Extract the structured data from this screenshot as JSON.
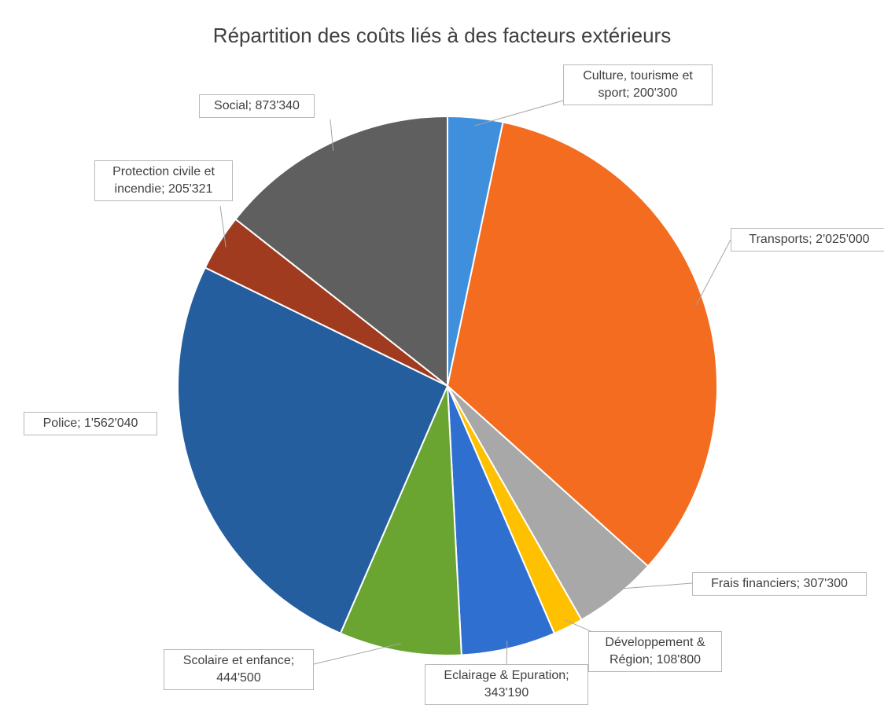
{
  "chart_data": {
    "type": "pie",
    "title": "Répartition des coûts liés à des facteurs extérieurs",
    "values": [
      200300,
      2025000,
      307300,
      108800,
      343190,
      444500,
      1562040,
      205321,
      873340
    ],
    "value_labels": [
      "Culture, tourisme et sport; 200'300",
      "Transports; 2'025'000",
      "Frais financiers; 307'300",
      "Développement & Région; 108'800",
      "Eclairage & Epuration; 343'190",
      "Scolaire et enfance; 444'500",
      "Police; 1'562'040",
      "Protection civile et incendie; 205'321",
      "Social; 873'340"
    ],
    "colors": [
      "#3f8fdc",
      "#f36c1f",
      "#a8a8a8",
      "#ffc000",
      "#2f6fcf",
      "#6aa431",
      "#255e9e",
      "#a13b20",
      "#5f5f5f"
    ]
  }
}
